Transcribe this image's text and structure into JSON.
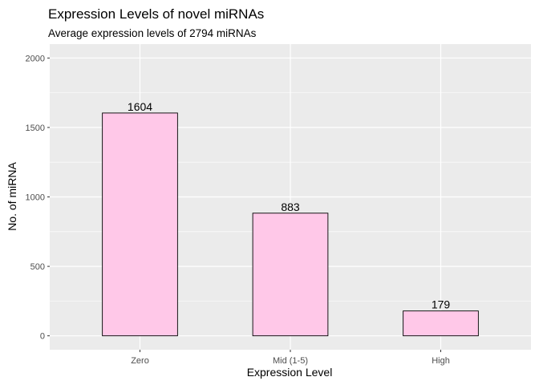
{
  "chart_data": {
    "type": "bar",
    "title": "Expression Levels of novel miRNAs",
    "subtitle": "Average expression levels of 2794 miRNAs",
    "xlabel": "Expression Level",
    "ylabel": "No. of miRNA",
    "categories": [
      "Zero",
      "Mid (1-5)",
      "High"
    ],
    "values": [
      1604,
      883,
      179
    ],
    "data_labels": [
      "1604",
      "883",
      "179"
    ],
    "ylim": [
      -100,
      2100
    ],
    "yticks": [
      0,
      500,
      1000,
      1500,
      2000
    ],
    "ytick_labels": [
      "0",
      "500",
      "1000",
      "1500",
      "2000"
    ],
    "grid": true,
    "legend": "none",
    "colors": {
      "bar_fill": "#FFC8E8",
      "bar_stroke": "#000000",
      "panel_bg": "#EBEBEB",
      "grid": "#FFFFFF"
    }
  }
}
